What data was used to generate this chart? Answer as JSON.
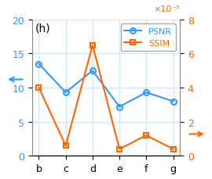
{
  "x_labels": [
    "b",
    "c",
    "d",
    "e",
    "f",
    "g"
  ],
  "psnr_values": [
    13.5,
    9.3,
    12.5,
    7.2,
    9.3,
    8.0
  ],
  "ssim_values": [
    4e-05,
    6e-06,
    6.5e-05,
    4e-06,
    1.2e-05,
    4e-06
  ],
  "psnr_color": "#3399FF",
  "ssim_color": "#FF6600",
  "psnr_ylim": [
    0,
    20
  ],
  "ssim_ylim": [
    0,
    8e-05
  ],
  "psnr_yticks": [
    0,
    5,
    10,
    15,
    20
  ],
  "ssim_yticks": [
    0,
    2,
    4,
    6,
    8
  ],
  "ssim_label": "×10⁻⁵",
  "panel_label": "(h)",
  "bg_color": "#ffffff",
  "grid_color": "#d0e8f8"
}
